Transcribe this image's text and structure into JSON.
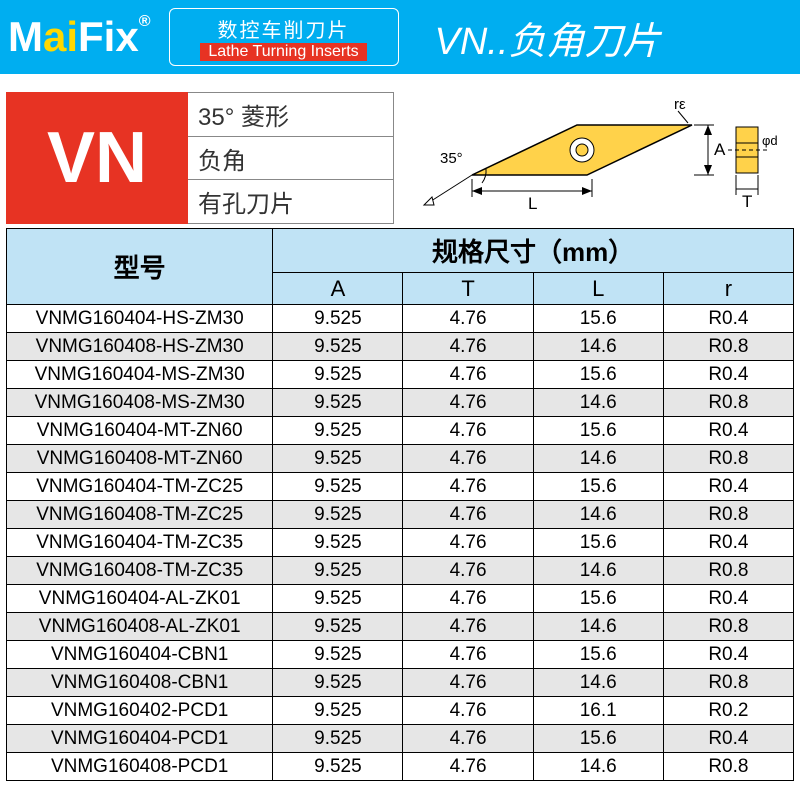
{
  "header": {
    "brand_m": "M",
    "brand_ai": "ai",
    "brand_fix": "Fix",
    "brand_reg": "®",
    "tag_zh": "数控车削刀片",
    "tag_en": "Lathe Turning Inserts",
    "title": "VN..负角刀片"
  },
  "spec": {
    "code": "VN",
    "attr1": "35° 菱形",
    "attr2": "负角",
    "attr3": "有孔刀片"
  },
  "diagram": {
    "angle_label": "35°",
    "dim_L": "L",
    "dim_A": "A",
    "dim_T": "T",
    "dim_r": "rε",
    "dim_d": "φd",
    "insert_fill": "#ffd24a",
    "insert_stroke": "#000",
    "hole_fill": "#fff"
  },
  "table": {
    "headers": {
      "model": "型号",
      "dims": "规格尺寸（mm）",
      "A": "A",
      "T": "T",
      "L": "L",
      "r": "r"
    },
    "rows": [
      {
        "m": "VNMG160404-HS-ZM30",
        "a": "9.525",
        "t": "4.76",
        "l": "15.6",
        "r": "R0.4"
      },
      {
        "m": "VNMG160408-HS-ZM30",
        "a": "9.525",
        "t": "4.76",
        "l": "14.6",
        "r": "R0.8"
      },
      {
        "m": "VNMG160404-MS-ZM30",
        "a": "9.525",
        "t": "4.76",
        "l": "15.6",
        "r": "R0.4"
      },
      {
        "m": "VNMG160408-MS-ZM30",
        "a": "9.525",
        "t": "4.76",
        "l": "14.6",
        "r": "R0.8"
      },
      {
        "m": "VNMG160404-MT-ZN60",
        "a": "9.525",
        "t": "4.76",
        "l": "15.6",
        "r": "R0.4"
      },
      {
        "m": "VNMG160408-MT-ZN60",
        "a": "9.525",
        "t": "4.76",
        "l": "14.6",
        "r": "R0.8"
      },
      {
        "m": "VNMG160404-TM-ZC25",
        "a": "9.525",
        "t": "4.76",
        "l": "15.6",
        "r": "R0.4"
      },
      {
        "m": "VNMG160408-TM-ZC25",
        "a": "9.525",
        "t": "4.76",
        "l": "14.6",
        "r": "R0.8"
      },
      {
        "m": "VNMG160404-TM-ZC35",
        "a": "9.525",
        "t": "4.76",
        "l": "15.6",
        "r": "R0.4"
      },
      {
        "m": "VNMG160408-TM-ZC35",
        "a": "9.525",
        "t": "4.76",
        "l": "14.6",
        "r": "R0.8"
      },
      {
        "m": "VNMG160404-AL-ZK01",
        "a": "9.525",
        "t": "4.76",
        "l": "15.6",
        "r": "R0.4"
      },
      {
        "m": "VNMG160408-AL-ZK01",
        "a": "9.525",
        "t": "4.76",
        "l": "14.6",
        "r": "R0.8"
      },
      {
        "m": "VNMG160404-CBN1",
        "a": "9.525",
        "t": "4.76",
        "l": "15.6",
        "r": "R0.4"
      },
      {
        "m": "VNMG160408-CBN1",
        "a": "9.525",
        "t": "4.76",
        "l": "14.6",
        "r": "R0.8"
      },
      {
        "m": "VNMG160402-PCD1",
        "a": "9.525",
        "t": "4.76",
        "l": "16.1",
        "r": "R0.2"
      },
      {
        "m": "VNMG160404-PCD1",
        "a": "9.525",
        "t": "4.76",
        "l": "15.6",
        "r": "R0.4"
      },
      {
        "m": "VNMG160408-PCD1",
        "a": "9.525",
        "t": "4.76",
        "l": "14.6",
        "r": "R0.8"
      }
    ]
  }
}
